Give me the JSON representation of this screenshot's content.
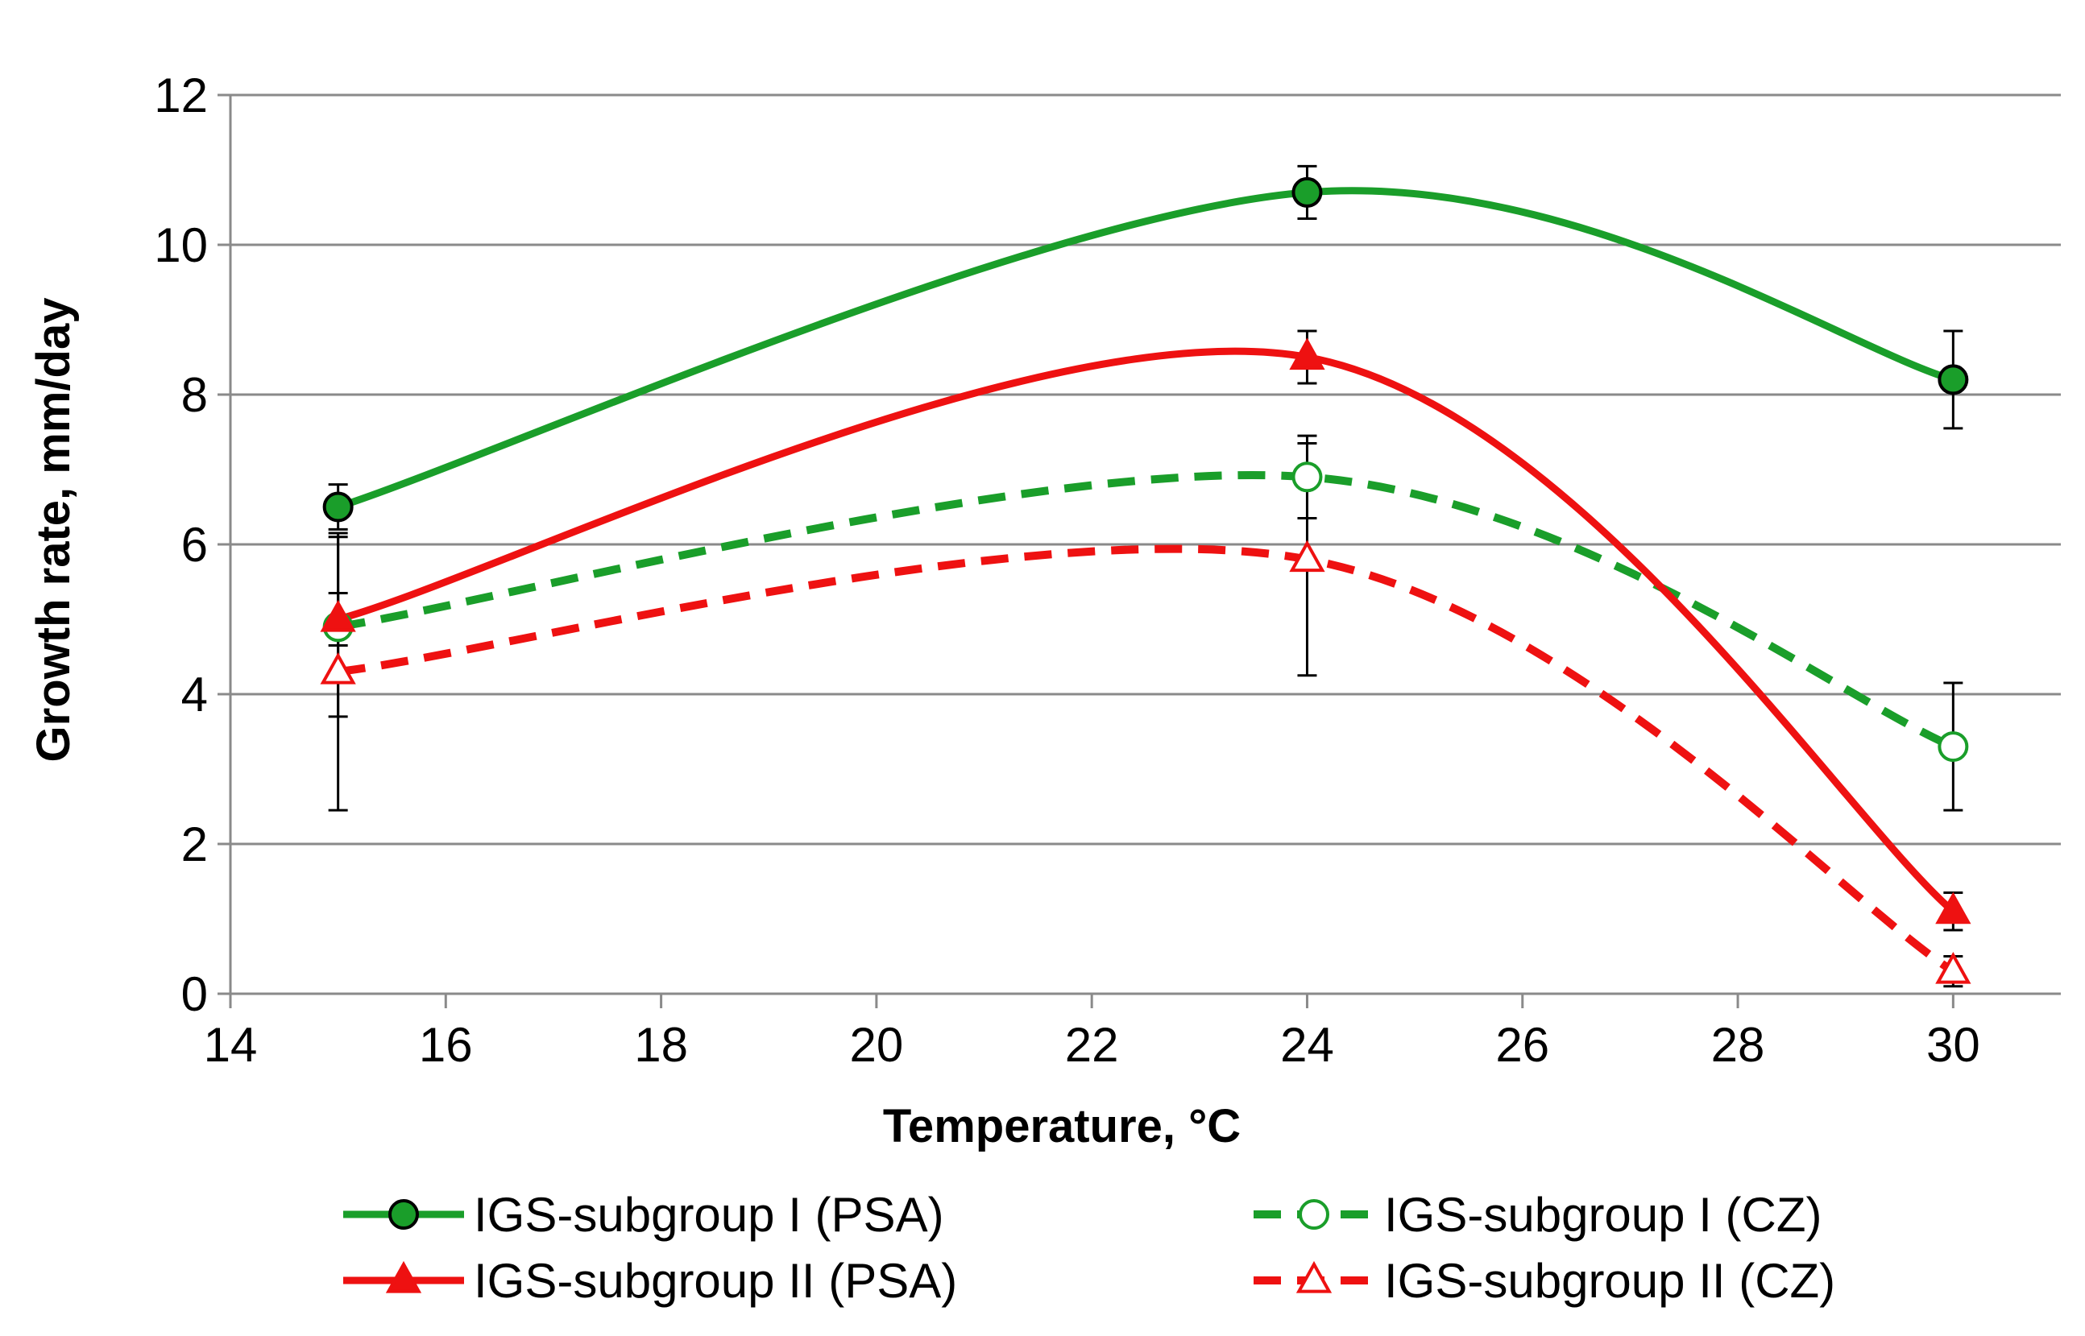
{
  "chart_data": {
    "type": "line",
    "title": "",
    "xlabel": "Temperature, °C",
    "ylabel": "Growth rate,  mm/day",
    "xlim": [
      14,
      31
    ],
    "ylim": [
      0,
      12
    ],
    "xticks": [
      14,
      16,
      18,
      20,
      22,
      24,
      26,
      28,
      30
    ],
    "yticks": [
      0,
      2,
      4,
      6,
      8,
      10,
      12
    ],
    "grid": "horizontal",
    "legend_position": "bottom",
    "series": [
      {
        "name": "IGS-subgroup I (PSA)",
        "color": "#1a9e2a",
        "marker": "circle",
        "marker_fill": "#1a9e2a",
        "marker_edge": "#000000",
        "line_style": "solid",
        "x": [
          15,
          24,
          30
        ],
        "y": [
          6.5,
          10.7,
          8.2
        ],
        "error": [
          0.3,
          0.35,
          0.65
        ]
      },
      {
        "name": "IGS-subgroup I (CZ)",
        "color": "#1a9e2a",
        "marker": "circle",
        "marker_fill": "#ffffff",
        "marker_edge": "#1a9e2a",
        "line_style": "dashed",
        "x": [
          15,
          24,
          30
        ],
        "y": [
          4.9,
          6.9,
          3.3
        ],
        "error": [
          1.2,
          0.55,
          0.85
        ]
      },
      {
        "name": "IGS-subgroup II (PSA)",
        "color": "#ee1111",
        "marker": "triangle",
        "marker_fill": "#ee1111",
        "marker_edge": "#ee1111",
        "line_style": "solid",
        "x": [
          15,
          24,
          30
        ],
        "y": [
          5.0,
          8.5,
          1.1
        ],
        "error": [
          0.35,
          0.35,
          0.25
        ]
      },
      {
        "name": "IGS-subgroup II (CZ)",
        "color": "#ee1111",
        "marker": "triangle",
        "marker_fill": "#ffffff",
        "marker_edge": "#ee1111",
        "line_style": "dashed",
        "x": [
          15,
          24,
          30
        ],
        "y": [
          4.3,
          5.8,
          0.3
        ],
        "error": [
          1.85,
          1.55,
          0.2
        ]
      }
    ]
  }
}
